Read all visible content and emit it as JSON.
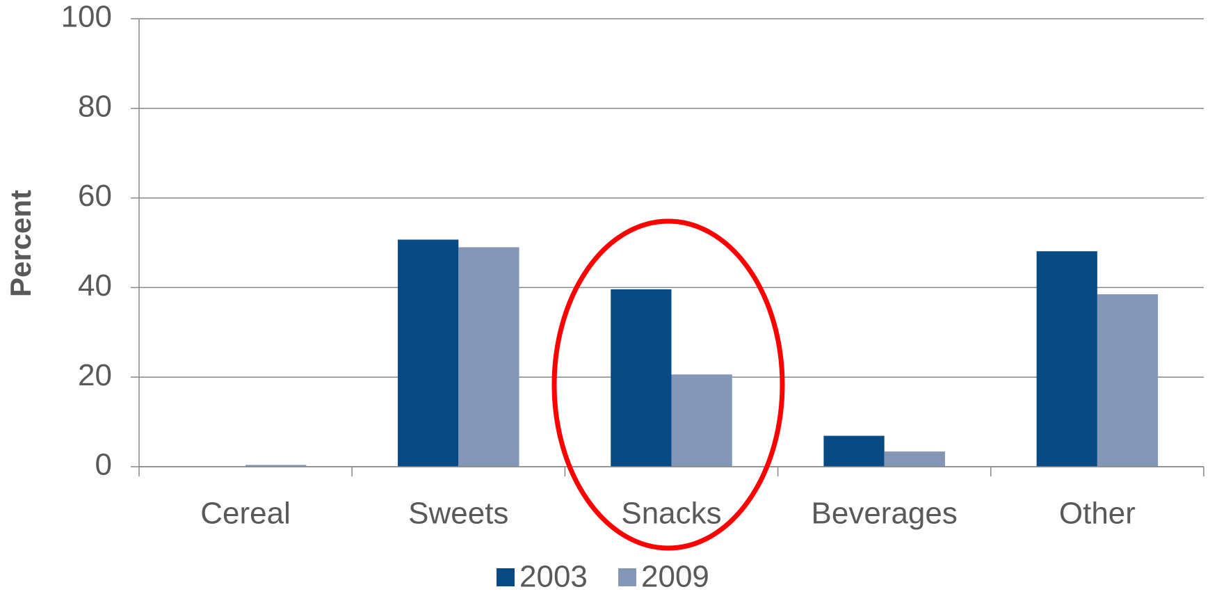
{
  "chart_data": {
    "type": "bar",
    "y_label": "Percent",
    "categories": [
      "Cereal",
      "Sweets",
      "Snacks",
      "Beverages",
      "Other"
    ],
    "series": [
      {
        "name": "2003",
        "color": "#084a83",
        "values": [
          0,
          50.7,
          39.6,
          6.9,
          48.1
        ]
      },
      {
        "name": "2009",
        "color": "#8497b7",
        "values": [
          0.4,
          49,
          20.6,
          3.4,
          38.5
        ]
      }
    ],
    "ylim": [
      0,
      100
    ],
    "yticks": [
      0,
      20,
      40,
      60,
      80,
      100
    ],
    "grid": true,
    "legend": "bottom"
  }
}
